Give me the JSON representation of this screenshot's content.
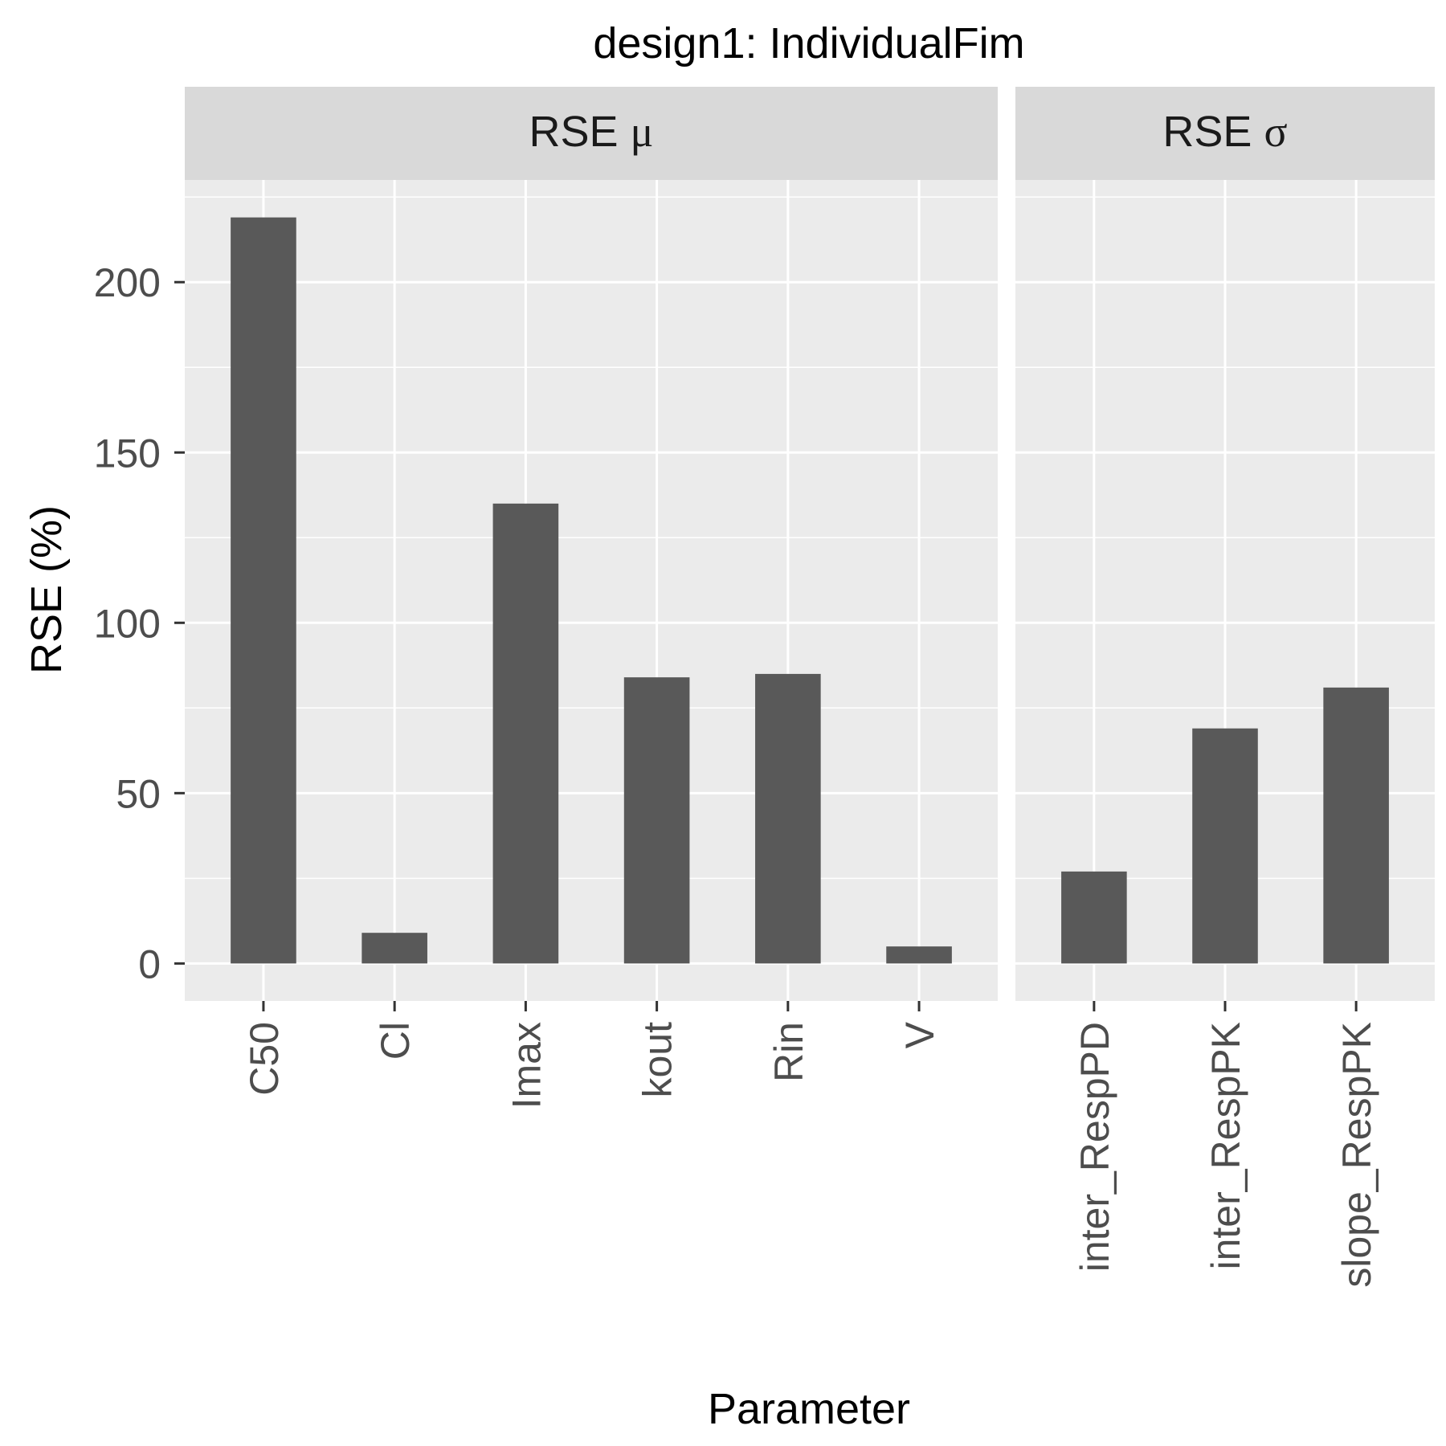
{
  "chart_data": {
    "type": "bar",
    "title": "design1: IndividualFim",
    "xlabel": "Parameter",
    "ylabel": "RSE (%)",
    "ylim": [
      -11,
      230
    ],
    "yticks": [
      0,
      50,
      100,
      150,
      200
    ],
    "grid": true,
    "colors": {
      "bar": "#595959",
      "panel": "#ebebeb",
      "strip": "#d9d9d9",
      "grid": "#ffffff",
      "text": "#1a1a1a",
      "tick_text": "#4d4d4d",
      "tick": "#333333"
    },
    "facets": [
      {
        "label_text": "RSE",
        "label_symbol": "μ",
        "categories": [
          "C50",
          "Cl",
          "Imax",
          "kout",
          "Rin",
          "V"
        ],
        "values": [
          219,
          9,
          135,
          84,
          85,
          5
        ]
      },
      {
        "label_text": "RSE",
        "label_symbol": "σ",
        "categories": [
          "inter_RespPD",
          "inter_RespPK",
          "slope_RespPK"
        ],
        "values": [
          27,
          69,
          81
        ]
      }
    ]
  }
}
